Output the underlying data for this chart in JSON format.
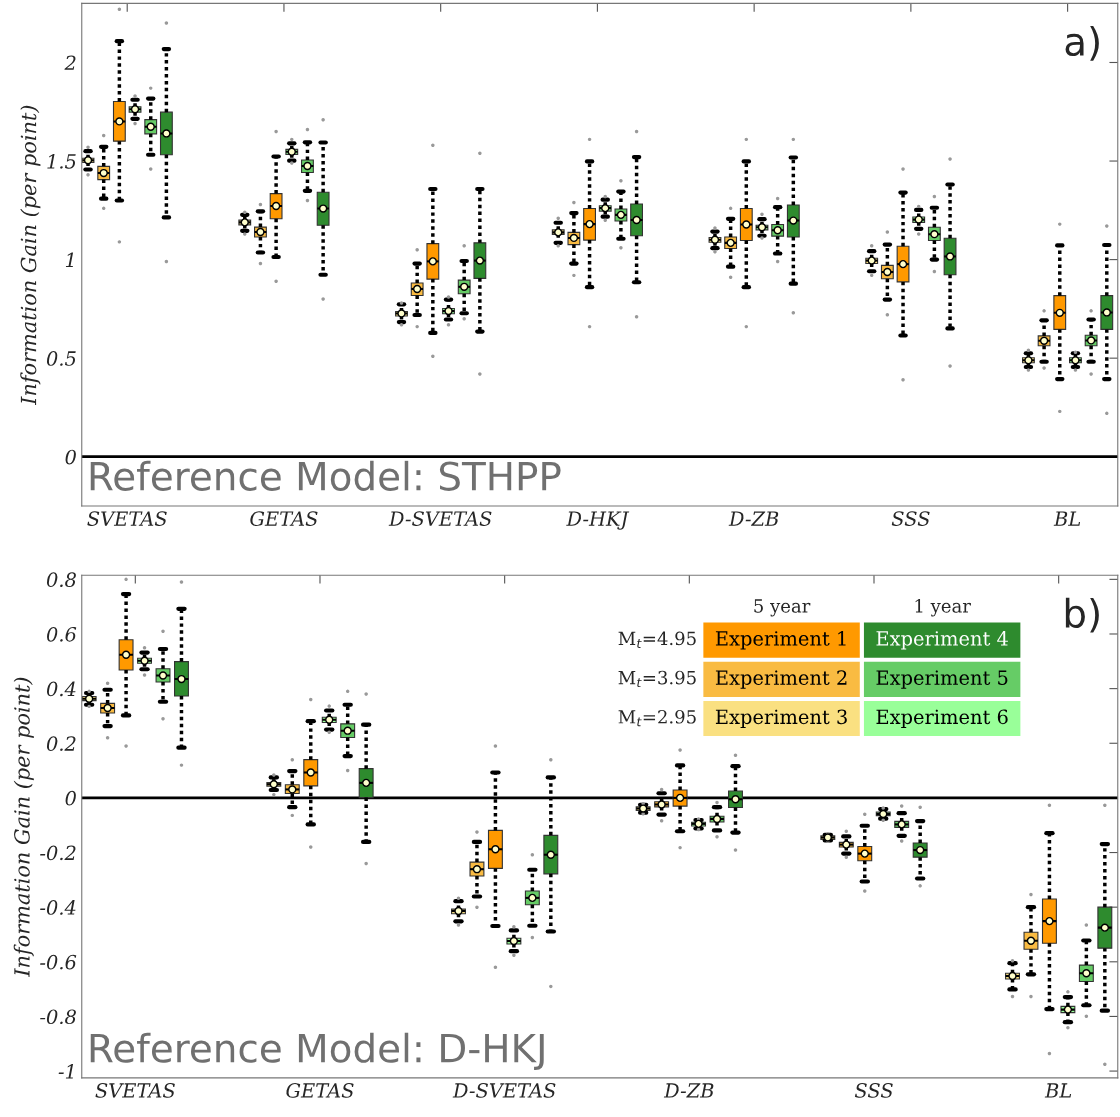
{
  "chart_data": [
    {
      "type": "box",
      "ylabel": "Information Gain (per point)",
      "annotations": [
        "a)",
        "Reference Model: STHPP"
      ],
      "categories": [
        "SVETAS",
        "GETAS",
        "D-SVETAS",
        "D-HKJ",
        "D-ZB",
        "SSS",
        "BL"
      ],
      "ylim": [
        -0.25,
        2.3
      ],
      "yticks": [
        0,
        0.5,
        1,
        1.5,
        2
      ],
      "grid": false,
      "ref_lines": [
        {
          "axis": "y",
          "value": 0,
          "color": "#000000"
        }
      ],
      "series": [
        {
          "color": "#fae081",
          "boxes": [
            {
              "low": 1.457,
              "q1": 1.493,
              "median": 1.504,
              "q3": 1.514,
              "high": 1.55,
              "mean": 1.504,
              "outliers": [
                1.57,
                1.43
              ]
            },
            {
              "low": 1.146,
              "q1": 1.176,
              "median": 1.189,
              "q3": 1.2,
              "high": 1.227,
              "mean": 1.189,
              "outliers": [
                1.24,
                1.13
              ]
            },
            {
              "low": 0.683,
              "q1": 0.714,
              "median": 0.727,
              "q3": 0.737,
              "high": 0.773,
              "mean": 0.727,
              "outliers": [
                0.78,
                0.67
              ]
            },
            {
              "low": 1.085,
              "q1": 1.128,
              "median": 1.138,
              "q3": 1.151,
              "high": 1.187,
              "mean": 1.138,
              "outliers": [
                1.21,
                1.07
              ]
            },
            {
              "low": 1.058,
              "q1": 1.088,
              "median": 1.101,
              "q3": 1.112,
              "high": 1.142,
              "mean": 1.101,
              "outliers": [
                1.16,
                1.04
              ]
            },
            {
              "low": 0.941,
              "q1": 0.98,
              "median": 0.995,
              "q3": 1.007,
              "high": 1.043,
              "mean": 0.995,
              "outliers": [
                1.07,
                0.92
              ]
            },
            {
              "low": 0.455,
              "q1": 0.477,
              "median": 0.489,
              "q3": 0.502,
              "high": 0.525,
              "mean": 0.489,
              "outliers": [
                0.54,
                0.44
              ]
            }
          ]
        },
        {
          "color": "#f9bb42",
          "boxes": [
            {
              "low": 1.309,
              "q1": 1.406,
              "median": 1.439,
              "q3": 1.473,
              "high": 1.572,
              "mean": 1.439,
              "outliers": [
                1.63,
                1.26
              ]
            },
            {
              "low": 1.036,
              "q1": 1.115,
              "median": 1.14,
              "q3": 1.165,
              "high": 1.245,
              "mean": 1.14,
              "outliers": [
                1.28,
                0.98
              ]
            },
            {
              "low": 0.719,
              "q1": 0.818,
              "median": 0.851,
              "q3": 0.881,
              "high": 0.98,
              "mean": 0.851,
              "outliers": [
                1.05,
                0.66
              ]
            },
            {
              "low": 0.98,
              "q1": 1.076,
              "median": 1.11,
              "q3": 1.138,
              "high": 1.236,
              "mean": 1.11,
              "outliers": [
                1.29,
                0.92
              ]
            },
            {
              "low": 0.964,
              "q1": 1.056,
              "median": 1.085,
              "q3": 1.115,
              "high": 1.207,
              "mean": 1.085,
              "outliers": [
                1.26,
                0.91
              ]
            },
            {
              "low": 0.797,
              "q1": 0.903,
              "median": 0.937,
              "q3": 0.971,
              "high": 1.076,
              "mean": 0.937,
              "outliers": [
                1.14,
                0.72
              ]
            },
            {
              "low": 0.482,
              "q1": 0.563,
              "median": 0.588,
              "q3": 0.613,
              "high": 0.692,
              "mean": 0.588,
              "outliers": [
                0.74,
                0.45
              ]
            }
          ]
        },
        {
          "color": "#ff9900",
          "boxes": [
            {
              "low": 1.3,
              "q1": 1.601,
              "median": 1.701,
              "q3": 1.802,
              "high": 2.108,
              "mean": 1.701,
              "outliers": [
                2.27,
                1.09
              ]
            },
            {
              "low": 1.013,
              "q1": 1.207,
              "median": 1.272,
              "q3": 1.335,
              "high": 1.523,
              "mean": 1.272,
              "outliers": [
                1.65,
                0.89
              ]
            },
            {
              "low": 0.628,
              "q1": 0.901,
              "median": 0.991,
              "q3": 1.081,
              "high": 1.358,
              "mean": 0.991,
              "outliers": [
                1.58,
                0.51
              ]
            },
            {
              "low": 0.86,
              "q1": 1.099,
              "median": 1.18,
              "q3": 1.259,
              "high": 1.498,
              "mean": 1.18,
              "outliers": [
                1.61,
                0.66
              ]
            },
            {
              "low": 0.86,
              "q1": 1.097,
              "median": 1.178,
              "q3": 1.259,
              "high": 1.498,
              "mean": 1.178,
              "outliers": [
                1.61,
                0.66
              ]
            },
            {
              "low": 0.615,
              "q1": 0.887,
              "median": 0.977,
              "q3": 1.068,
              "high": 1.34,
              "mean": 0.977,
              "outliers": [
                1.46,
                0.39
              ]
            },
            {
              "low": 0.394,
              "q1": 0.646,
              "median": 0.73,
              "q3": 0.817,
              "high": 1.072,
              "mean": 0.73,
              "outliers": [
                1.18,
                0.23
              ]
            }
          ]
        },
        {
          "color": "#99ff99",
          "boxes": [
            {
              "low": 1.714,
              "q1": 1.748,
              "median": 1.763,
              "q3": 1.775,
              "high": 1.811,
              "mean": 1.763,
              "outliers": [
                1.83,
                1.69
              ]
            },
            {
              "low": 1.502,
              "q1": 1.534,
              "median": 1.547,
              "q3": 1.559,
              "high": 1.59,
              "mean": 1.547,
              "outliers": [
                1.61,
                1.49
              ]
            },
            {
              "low": 0.696,
              "q1": 0.725,
              "median": 0.739,
              "q3": 0.752,
              "high": 0.797,
              "mean": 0.739,
              "outliers": [
                0.81,
                0.67
              ]
            },
            {
              "low": 1.218,
              "q1": 1.246,
              "median": 1.261,
              "q3": 1.273,
              "high": 1.304,
              "mean": 1.261,
              "outliers": [
                1.32,
                1.2
              ]
            },
            {
              "low": 1.121,
              "q1": 1.151,
              "median": 1.164,
              "q3": 1.174,
              "high": 1.205,
              "mean": 1.164,
              "outliers": [
                1.23,
                1.11
              ]
            },
            {
              "low": 1.156,
              "q1": 1.189,
              "median": 1.203,
              "q3": 1.216,
              "high": 1.252,
              "mean": 1.203,
              "outliers": [
                1.27,
                1.13
              ]
            },
            {
              "low": 0.455,
              "q1": 0.477,
              "median": 0.489,
              "q3": 0.502,
              "high": 0.525,
              "mean": 0.489,
              "outliers": [
                0.53,
                0.44
              ]
            }
          ]
        },
        {
          "color": "#66cc66",
          "boxes": [
            {
              "low": 1.532,
              "q1": 1.638,
              "median": 1.674,
              "q3": 1.71,
              "high": 1.817,
              "mean": 1.674,
              "outliers": [
                1.87,
                1.46
              ]
            },
            {
              "low": 1.349,
              "q1": 1.442,
              "median": 1.475,
              "q3": 1.505,
              "high": 1.595,
              "mean": 1.475,
              "outliers": [
                1.66,
                1.3
              ]
            },
            {
              "low": 0.728,
              "q1": 0.827,
              "median": 0.862,
              "q3": 0.896,
              "high": 0.993,
              "mean": 0.862,
              "outliers": [
                1.07,
                0.7
              ]
            },
            {
              "low": 1.106,
              "q1": 1.196,
              "median": 1.227,
              "q3": 1.257,
              "high": 1.345,
              "mean": 1.227,
              "outliers": [
                1.4,
                1.06
              ]
            },
            {
              "low": 1.031,
              "q1": 1.119,
              "median": 1.149,
              "q3": 1.178,
              "high": 1.266,
              "mean": 1.149,
              "outliers": [
                1.31,
                0.99
              ]
            },
            {
              "low": 1.0,
              "q1": 1.097,
              "median": 1.129,
              "q3": 1.164,
              "high": 1.263,
              "mean": 1.129,
              "outliers": [
                1.32,
                0.94
              ]
            },
            {
              "low": 0.482,
              "q1": 0.563,
              "median": 0.59,
              "q3": 0.616,
              "high": 0.696,
              "mean": 0.59,
              "outliers": [
                0.74,
                0.42
              ]
            }
          ]
        },
        {
          "color": "#2e8b2e",
          "boxes": [
            {
              "low": 1.214,
              "q1": 1.532,
              "median": 1.64,
              "q3": 1.748,
              "high": 2.068,
              "mean": 1.64,
              "outliers": [
                2.2,
                0.99
              ]
            },
            {
              "low": 0.923,
              "q1": 1.174,
              "median": 1.259,
              "q3": 1.342,
              "high": 1.594,
              "mean": 1.259,
              "outliers": [
                1.71,
                0.8
              ]
            },
            {
              "low": 0.635,
              "q1": 0.905,
              "median": 0.995,
              "q3": 1.085,
              "high": 1.358,
              "mean": 0.995,
              "outliers": [
                1.54,
                0.42
              ]
            },
            {
              "low": 0.885,
              "q1": 1.121,
              "median": 1.201,
              "q3": 1.282,
              "high": 1.52,
              "mean": 1.201,
              "outliers": [
                1.65,
                0.71
              ]
            },
            {
              "low": 0.878,
              "q1": 1.115,
              "median": 1.198,
              "q3": 1.277,
              "high": 1.518,
              "mean": 1.198,
              "outliers": [
                1.61,
                0.73
              ]
            },
            {
              "low": 0.651,
              "q1": 0.923,
              "median": 1.016,
              "q3": 1.108,
              "high": 1.381,
              "mean": 1.016,
              "outliers": [
                1.51,
                0.46
              ]
            },
            {
              "low": 0.394,
              "q1": 0.646,
              "median": 0.732,
              "q3": 0.817,
              "high": 1.074,
              "mean": 0.732,
              "outliers": [
                1.17,
                0.22
              ]
            }
          ]
        }
      ]
    },
    {
      "type": "box",
      "ylabel": "Information Gain (per point)",
      "annotations": [
        "b)",
        "Reference Model: D-HKJ",
        "5 year",
        "1 year",
        "M$_{t}$=4.95",
        "M$_{t}$=3.95",
        "M$_{t}$=2.95"
      ],
      "categories": [
        "SVETAS",
        "GETAS",
        "D-SVETAS",
        "D-ZB",
        "SSS",
        "BL"
      ],
      "ylim": [
        -1.025,
        0.815
      ],
      "yticks": [
        -1,
        -0.8,
        -0.6,
        -0.4,
        -0.2,
        0,
        0.2,
        0.4,
        0.6,
        0.8
      ],
      "grid": false,
      "ref_lines": [
        {
          "axis": "y",
          "value": 0,
          "color": "#000000"
        }
      ],
      "series": [
        {
          "name": "Experiment 3",
          "color": "#fae081",
          "boxes": [
            {
              "low": 0.341,
              "q1": 0.356,
              "median": 0.363,
              "q3": 0.371,
              "high": 0.384,
              "mean": 0.363,
              "outliers": [
                0.39,
                0.335
              ]
            },
            {
              "low": 0.029,
              "q1": 0.043,
              "median": 0.05,
              "q3": 0.056,
              "high": 0.075,
              "mean": 0.05,
              "outliers": [
                0.084,
                0.012
              ]
            },
            {
              "low": -0.452,
              "q1": -0.424,
              "median": -0.414,
              "q3": -0.407,
              "high": -0.378,
              "mean": -0.414,
              "outliers": [
                -0.367,
                -0.465
              ]
            },
            {
              "low": -0.054,
              "q1": -0.046,
              "median": -0.039,
              "q3": -0.033,
              "high": -0.025,
              "mean": -0.039,
              "outliers": [
                -0.021,
                -0.058
              ]
            },
            {
              "low": -0.156,
              "q1": -0.152,
              "median": -0.145,
              "q3": -0.139,
              "high": -0.135,
              "mean": -0.145,
              "outliers": [
                -0.132,
                -0.159
              ]
            },
            {
              "low": -0.701,
              "q1": -0.663,
              "median": -0.652,
              "q3": -0.642,
              "high": -0.605,
              "mean": -0.652,
              "outliers": [
                -0.596,
                -0.727
              ]
            }
          ]
        },
        {
          "name": "Experiment 2",
          "color": "#f9bb42",
          "boxes": [
            {
              "low": 0.263,
              "q1": 0.311,
              "median": 0.329,
              "q3": 0.346,
              "high": 0.396,
              "mean": 0.329,
              "outliers": [
                0.42,
                0.22
              ]
            },
            {
              "low": -0.034,
              "q1": 0.016,
              "median": 0.031,
              "q3": 0.048,
              "high": 0.098,
              "mean": 0.031,
              "outliers": [
                0.14,
                -0.064
              ]
            },
            {
              "low": -0.361,
              "q1": -0.286,
              "median": -0.261,
              "q3": -0.235,
              "high": -0.161,
              "mean": -0.261,
              "outliers": [
                -0.125,
                -0.4
              ]
            },
            {
              "low": -0.061,
              "q1": -0.033,
              "median": -0.024,
              "q3": -0.014,
              "high": 0.017,
              "mean": -0.024,
              "outliers": [
                0.031,
                -0.084
              ]
            },
            {
              "low": -0.204,
              "q1": -0.18,
              "median": -0.171,
              "q3": -0.163,
              "high": -0.141,
              "mean": -0.171,
              "outliers": [
                -0.122,
                -0.217
              ]
            },
            {
              "low": -0.646,
              "q1": -0.554,
              "median": -0.523,
              "q3": -0.492,
              "high": -0.4,
              "mean": -0.523,
              "outliers": [
                -0.354,
                -0.727
              ]
            }
          ]
        },
        {
          "name": "Experiment 1",
          "color": "#ff9900",
          "boxes": [
            {
              "low": 0.302,
              "q1": 0.468,
              "median": 0.524,
              "q3": 0.579,
              "high": 0.746,
              "mean": 0.524,
              "outliers": [
                0.8,
                0.19
              ]
            },
            {
              "low": -0.097,
              "q1": 0.044,
              "median": 0.093,
              "q3": 0.14,
              "high": 0.281,
              "mean": 0.093,
              "outliers": [
                0.36,
                -0.18
              ]
            },
            {
              "low": -0.469,
              "q1": -0.258,
              "median": -0.188,
              "q3": -0.119,
              "high": 0.093,
              "mean": -0.188,
              "outliers": [
                0.19,
                -0.62
              ]
            },
            {
              "low": -0.122,
              "q1": -0.03,
              "median": 0,
              "q3": 0.029,
              "high": 0.119,
              "mean": 0,
              "outliers": [
                0.175,
                -0.182
              ]
            },
            {
              "low": -0.306,
              "q1": -0.23,
              "median": -0.204,
              "q3": -0.178,
              "high": -0.102,
              "mean": -0.204,
              "outliers": [
                -0.06,
                -0.341
              ]
            },
            {
              "low": -0.773,
              "q1": -0.532,
              "median": -0.451,
              "q3": -0.37,
              "high": -0.129,
              "mean": -0.451,
              "outliers": [
                -0.027,
                -0.936
              ]
            }
          ]
        },
        {
          "name": "Experiment 6",
          "color": "#99ff99",
          "boxes": [
            {
              "low": 0.471,
              "q1": 0.493,
              "median": 0.502,
              "q3": 0.511,
              "high": 0.532,
              "mean": 0.502,
              "outliers": [
                0.55,
                0.45
              ]
            },
            {
              "low": 0.25,
              "q1": 0.276,
              "median": 0.286,
              "q3": 0.295,
              "high": 0.32,
              "mean": 0.286,
              "outliers": [
                0.336,
                0.24
              ]
            },
            {
              "low": -0.561,
              "q1": -0.535,
              "median": -0.524,
              "q3": -0.514,
              "high": -0.485,
              "mean": -0.524,
              "outliers": [
                -0.472,
                -0.576
              ]
            },
            {
              "low": -0.112,
              "q1": -0.103,
              "median": -0.095,
              "q3": -0.089,
              "high": -0.081,
              "mean": -0.095,
              "outliers": [
                -0.077,
                -0.116
              ]
            },
            {
              "low": -0.076,
              "q1": -0.065,
              "median": -0.059,
              "q3": -0.052,
              "high": -0.041,
              "mean": -0.059,
              "outliers": [
                -0.037,
                -0.082
              ]
            },
            {
              "low": -0.821,
              "q1": -0.786,
              "median": -0.775,
              "q3": -0.763,
              "high": -0.729,
              "mean": -0.775,
              "outliers": [
                -0.71,
                -0.841
              ]
            }
          ]
        },
        {
          "name": "Experiment 5",
          "color": "#66cc66",
          "boxes": [
            {
              "low": 0.352,
              "q1": 0.424,
              "median": 0.448,
              "q3": 0.473,
              "high": 0.545,
              "mean": 0.448,
              "outliers": [
                0.61,
                0.29
              ]
            },
            {
              "low": 0.153,
              "q1": 0.221,
              "median": 0.246,
              "q3": 0.271,
              "high": 0.341,
              "mean": 0.246,
              "outliers": [
                0.39,
                0.1
              ]
            },
            {
              "low": -0.468,
              "q1": -0.391,
              "median": -0.366,
              "q3": -0.341,
              "high": -0.263,
              "mean": -0.366,
              "outliers": [
                -0.208,
                -0.511
              ]
            },
            {
              "low": -0.119,
              "q1": -0.088,
              "median": -0.077,
              "q3": -0.067,
              "high": -0.034,
              "mean": -0.077,
              "outliers": [
                -0.017,
                -0.142
              ]
            },
            {
              "low": -0.139,
              "q1": -0.108,
              "median": -0.097,
              "q3": -0.086,
              "high": -0.056,
              "mean": -0.097,
              "outliers": [
                -0.03,
                -0.158
              ]
            },
            {
              "low": -0.759,
              "q1": -0.672,
              "median": -0.642,
              "q3": -0.612,
              "high": -0.522,
              "mean": -0.642,
              "outliers": [
                -0.465,
                -0.799
              ]
            }
          ]
        },
        {
          "name": "Experiment 4",
          "color": "#2e8b2e",
          "boxes": [
            {
              "low": 0.184,
              "q1": 0.373,
              "median": 0.435,
              "q3": 0.499,
              "high": 0.692,
              "mean": 0.435,
              "outliers": [
                0.79,
                0.12
              ]
            },
            {
              "low": -0.161,
              "q1": 0.001,
              "median": 0.055,
              "q3": 0.107,
              "high": 0.268,
              "mean": 0.055,
              "outliers": [
                0.38,
                -0.24
              ]
            },
            {
              "low": -0.489,
              "q1": -0.278,
              "median": -0.208,
              "q3": -0.137,
              "high": 0.075,
              "mean": -0.208,
              "outliers": [
                0.14,
                -0.69
              ]
            },
            {
              "low": -0.127,
              "q1": -0.035,
              "median": -0.005,
              "q3": 0.025,
              "high": 0.116,
              "mean": -0.005,
              "outliers": [
                0.156,
                -0.191
              ]
            },
            {
              "low": -0.295,
              "q1": -0.217,
              "median": -0.191,
              "q3": -0.165,
              "high": -0.085,
              "mean": -0.191,
              "outliers": [
                -0.034,
                -0.322
              ]
            },
            {
              "low": -0.779,
              "q1": -0.55,
              "median": -0.475,
              "q3": -0.4,
              "high": -0.169,
              "mean": -0.475,
              "outliers": [
                -0.027,
                -0.975
              ]
            }
          ]
        }
      ]
    }
  ]
}
